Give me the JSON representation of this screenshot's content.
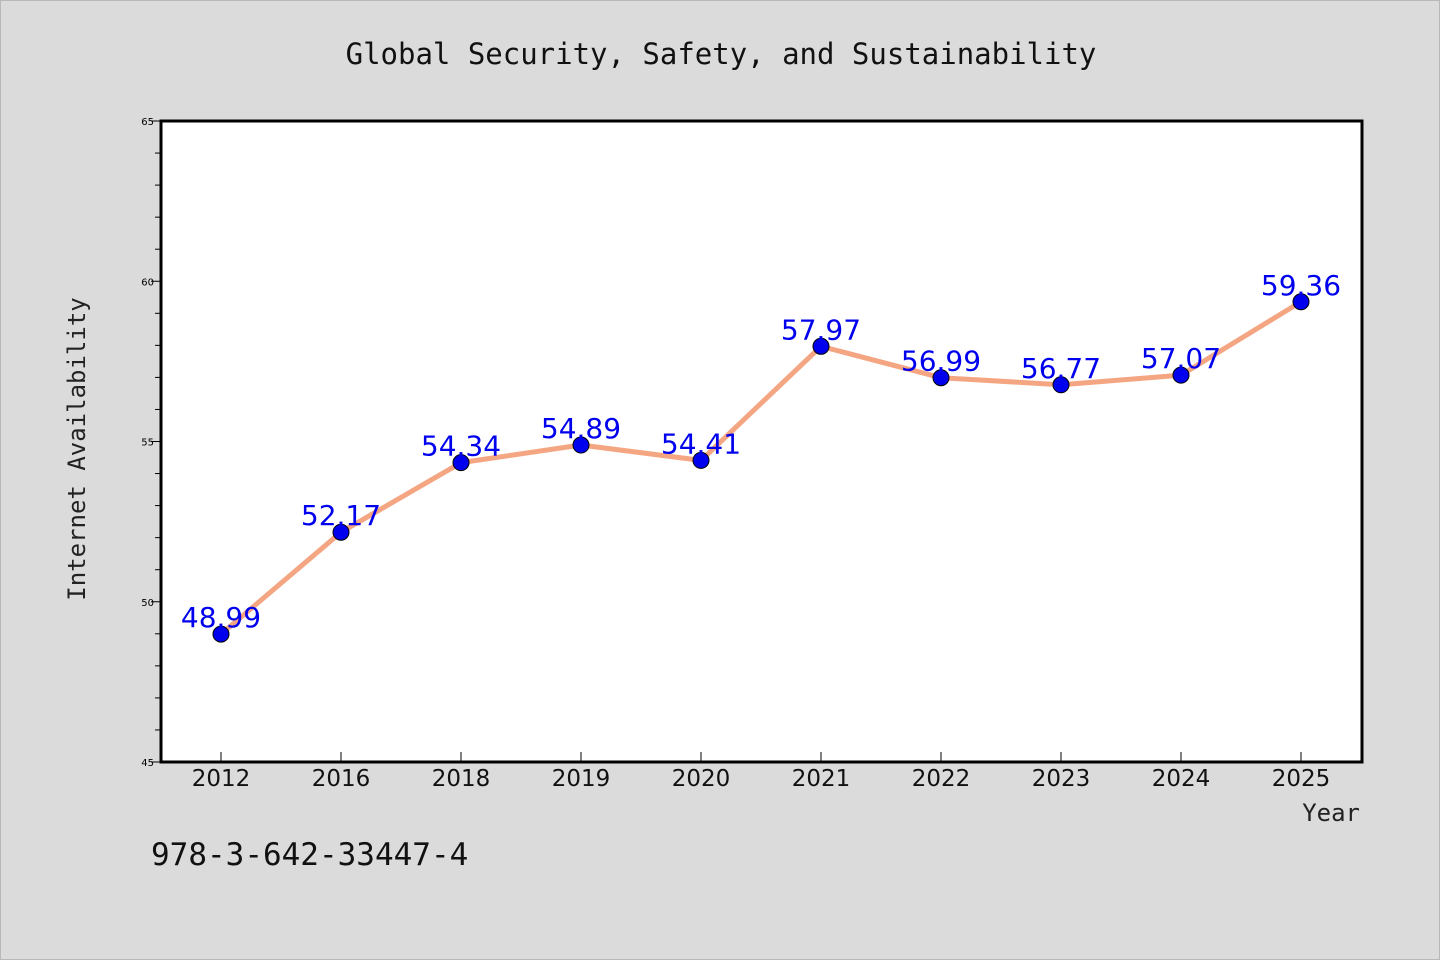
{
  "chart_data": {
    "type": "line",
    "title": "Global Security, Safety, and Sustainability",
    "xlabel": "Year",
    "ylabel": "Internet Availability",
    "categories": [
      "2012",
      "2016",
      "2018",
      "2019",
      "2020",
      "2021",
      "2022",
      "2023",
      "2024",
      "2025"
    ],
    "series": [
      {
        "values": [
          48.99,
          52.17,
          54.34,
          54.89,
          54.41,
          57.97,
          56.99,
          56.77,
          57.07,
          59.36
        ]
      }
    ],
    "data_labels": [
      "48.99",
      "52.17",
      "54.34",
      "54.89",
      "54.41",
      "57.97",
      "56.99",
      "56.77",
      "57.07",
      "59.36"
    ],
    "ylim": [
      45,
      65
    ],
    "yticks": [
      45,
      50,
      55,
      60,
      65
    ],
    "ytick_labels": [
      "45",
      "50",
      "55",
      "60",
      "65"
    ],
    "grid": false,
    "legend": "none",
    "colors": {
      "line": "#f4a582",
      "marker": "#0000ee",
      "data_label": "#0000ee",
      "plot_background": "#ffffff",
      "figure_background": "#dbdbdb"
    }
  },
  "footer": {
    "isbn": "978-3-642-33447-4"
  }
}
